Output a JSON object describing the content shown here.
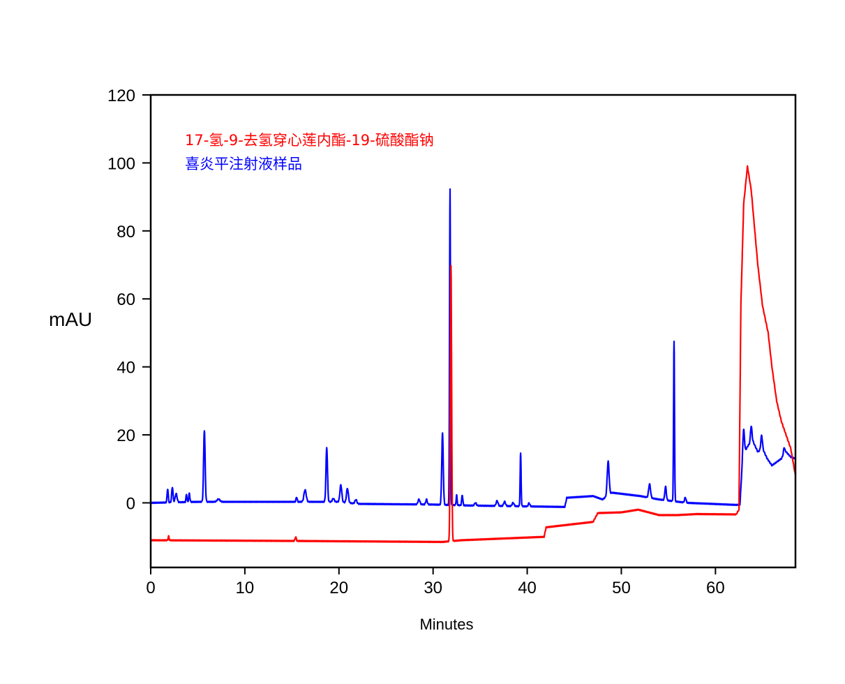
{
  "chart_data": {
    "type": "line",
    "title": "",
    "xlabel": "Minutes",
    "ylabel": "mAU",
    "xlim": [
      0,
      68.5
    ],
    "ylim": [
      -19,
      120
    ],
    "xticks": [
      0,
      10,
      20,
      30,
      40,
      50,
      60
    ],
    "yticks": [
      0,
      20,
      40,
      60,
      80,
      100,
      120
    ],
    "grid": false,
    "legend_position": "top-left",
    "series": [
      {
        "name": "17-氢-9-去氢穿心莲内酯-19-硫酸酯钠",
        "color": "#ff0000",
        "baseline": [
          [
            0,
            -11
          ],
          [
            15,
            -11.2
          ],
          [
            31,
            -11.5
          ],
          [
            33,
            -11
          ],
          [
            41.8,
            -10
          ],
          [
            42,
            -7.2
          ],
          [
            47,
            -5.6
          ],
          [
            47.5,
            -3
          ],
          [
            50,
            -2.8
          ],
          [
            51.8,
            -2
          ],
          [
            54,
            -3.6
          ],
          [
            56,
            -3.6
          ],
          [
            58,
            -3.3
          ],
          [
            62.2,
            -3.4
          ],
          [
            62.5,
            -2
          ],
          [
            62.7,
            58
          ],
          [
            63,
            88
          ],
          [
            63.4,
            99
          ],
          [
            63.8,
            92
          ],
          [
            64.5,
            70
          ],
          [
            65,
            58
          ],
          [
            65.6,
            50
          ],
          [
            66,
            40
          ],
          [
            66.5,
            30
          ],
          [
            67,
            24
          ],
          [
            67.5,
            20
          ],
          [
            68,
            16
          ],
          [
            68.5,
            8
          ]
        ],
        "peaks": [
          [
            1.9,
            1.2,
            0.05
          ],
          [
            15.4,
            1.2,
            0.06
          ],
          [
            31.9,
            81,
            0.07
          ]
        ]
      },
      {
        "name": "喜炎平注射液样品",
        "color": "#0000ff",
        "baseline": [
          [
            0,
            0
          ],
          [
            5,
            0.3
          ],
          [
            20,
            0.3
          ],
          [
            22,
            -0.3
          ],
          [
            30,
            -0.5
          ],
          [
            34,
            -0.8
          ],
          [
            44,
            -1.2
          ],
          [
            44.2,
            1.5
          ],
          [
            47,
            2
          ],
          [
            48,
            1
          ],
          [
            49,
            3
          ],
          [
            52,
            2
          ],
          [
            54,
            1
          ],
          [
            57,
            0
          ],
          [
            62.2,
            -0.6
          ],
          [
            62.6,
            -0.5
          ],
          [
            62.9,
            14
          ],
          [
            63.5,
            17
          ],
          [
            64,
            18
          ],
          [
            64.5,
            15
          ],
          [
            65,
            16
          ],
          [
            65.5,
            13
          ],
          [
            66,
            11
          ],
          [
            66.5,
            12
          ],
          [
            67,
            13
          ],
          [
            67.5,
            15
          ],
          [
            68,
            13.5
          ],
          [
            68.5,
            13
          ]
        ],
        "peaks": [
          [
            1.8,
            4,
            0.06
          ],
          [
            2.3,
            4.5,
            0.07
          ],
          [
            2.7,
            2.5,
            0.1
          ],
          [
            3.8,
            2.3,
            0.05
          ],
          [
            4.1,
            2.5,
            0.06
          ],
          [
            5.7,
            21,
            0.08
          ],
          [
            7.2,
            0.8,
            0.15
          ],
          [
            15.5,
            1.4,
            0.06
          ],
          [
            16.4,
            3.5,
            0.12
          ],
          [
            18.7,
            16,
            0.08
          ],
          [
            19.4,
            1,
            0.1
          ],
          [
            20.2,
            5,
            0.1
          ],
          [
            20.9,
            4.2,
            0.1
          ],
          [
            21.8,
            1.2,
            0.1
          ],
          [
            28.5,
            1.5,
            0.1
          ],
          [
            29.3,
            1.5,
            0.08
          ],
          [
            31,
            21,
            0.08
          ],
          [
            31.8,
            93,
            0.05
          ],
          [
            32.5,
            3,
            0.05
          ],
          [
            33.1,
            3,
            0.06
          ],
          [
            34.5,
            0.8,
            0.1
          ],
          [
            36.8,
            1.5,
            0.1
          ],
          [
            37.6,
            1.3,
            0.1
          ],
          [
            38.5,
            1,
            0.1
          ],
          [
            39.3,
            15.5,
            0.05
          ],
          [
            40.2,
            1,
            0.08
          ],
          [
            48.6,
            10,
            0.1
          ],
          [
            53,
            4,
            0.1
          ],
          [
            54.7,
            4,
            0.08
          ],
          [
            55.6,
            47,
            0.05
          ],
          [
            56.8,
            1.5,
            0.08
          ],
          [
            63,
            7,
            0.08
          ],
          [
            63.8,
            5,
            0.08
          ],
          [
            64.9,
            4,
            0.08
          ],
          [
            67.3,
            2,
            0.08
          ]
        ]
      }
    ]
  }
}
